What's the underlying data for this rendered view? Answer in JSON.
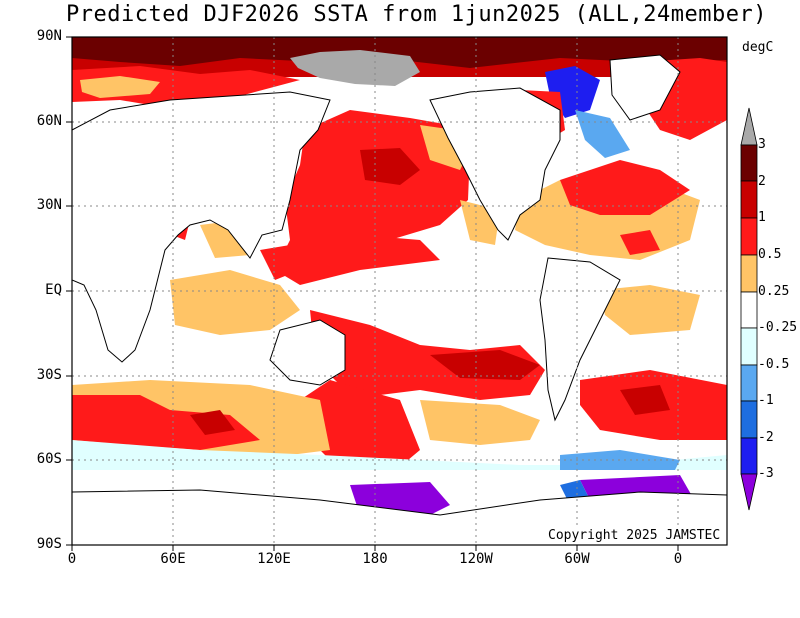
{
  "title": "Predicted DJF2026 SSTA from 1jun2025 (ALL,24member)",
  "unit": "degC",
  "copyright": "Copyright 2025 JAMSTEC",
  "lat_labels": [
    "90N",
    "60N",
    "30N",
    "EQ",
    "30S",
    "60S",
    "90S"
  ],
  "lon_labels": [
    "0",
    "60E",
    "120E",
    "180",
    "120W",
    "60W",
    "0"
  ],
  "colorbar": {
    "labels": [
      "3",
      "2",
      "1",
      "0.5",
      "0.25",
      "-0.25",
      "-0.5",
      "-1",
      "-2",
      "-3"
    ],
    "colors": [
      "#a9a9a9",
      "#6b0000",
      "#c80000",
      "#ff1a1a",
      "#ffc466",
      "#ffffff",
      "#e0ffff",
      "#5aa8f0",
      "#1e6ee0",
      "#1e1ef0",
      "#8c00dc"
    ]
  },
  "palette": {
    "very_warm": "#6b0000",
    "warm_strong": "#c80000",
    "warm": "#ff1a1a",
    "mild": "#ffc466",
    "neutral": "#ffffff",
    "cool_mild": "#e0ffff",
    "cool": "#5aa8f0",
    "cold": "#1e6ee0",
    "very_cold": "#8c00dc",
    "sea_ice": "#a9a9a9"
  }
}
